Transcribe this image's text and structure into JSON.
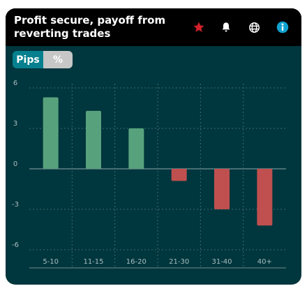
{
  "header": {
    "title_line1": "Profit secure, payoff from",
    "title_line2": "reverting trades",
    "icons": [
      "star-icon",
      "bell-icon",
      "globe-icon",
      "info-icon"
    ]
  },
  "toggle": {
    "options": [
      "Pips",
      "%"
    ],
    "selected": "Pips"
  },
  "colors": {
    "background": "#00363d",
    "header": "#000000",
    "positive": "#57a27c",
    "negative": "#c0504f",
    "star": "#d3212c",
    "info": "#10a2cf",
    "toggle_active": "#06808e"
  },
  "chart_data": {
    "type": "bar",
    "categories": [
      "5-10",
      "11-15",
      "16-20",
      "21-30",
      "31-40",
      "40+"
    ],
    "values": [
      5.3,
      4.3,
      3.0,
      -0.9,
      -3.0,
      -4.2
    ],
    "yticks": [
      6,
      3,
      0,
      -3,
      -6
    ],
    "ylim": [
      -6,
      6
    ],
    "grid": true,
    "title": "",
    "xlabel": "",
    "ylabel": ""
  }
}
